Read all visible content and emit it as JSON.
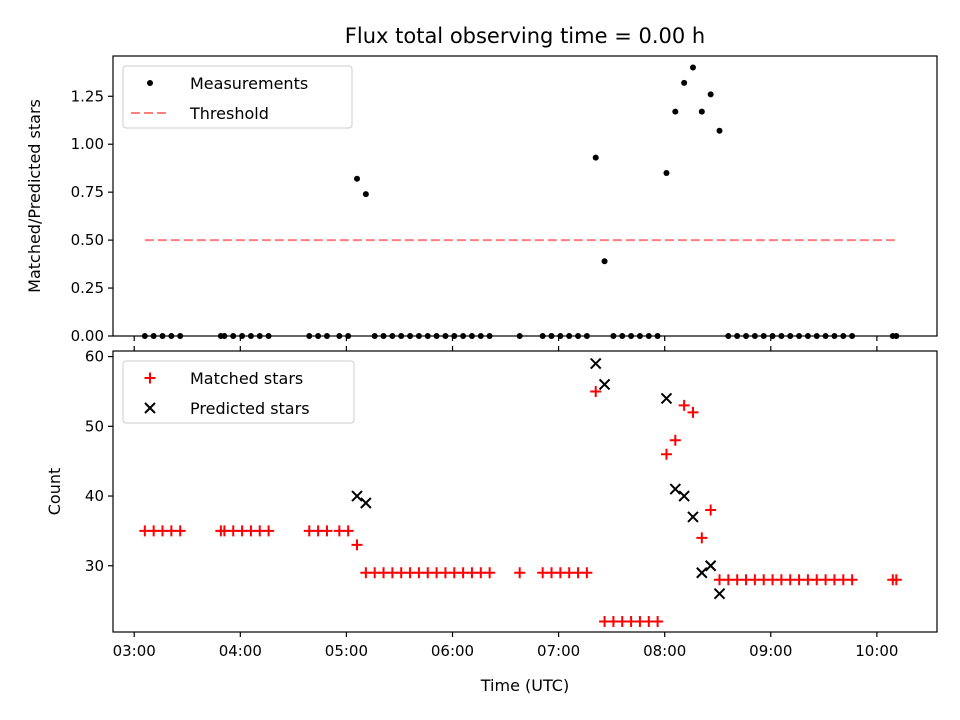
{
  "figure_title": "Flux total observing time = 0.00 h",
  "chart_data": [
    {
      "type": "scatter",
      "ylabel": "Matched/Predicted stars",
      "xlabel": "",
      "xlim": [
        "02:48",
        "10:34"
      ],
      "ylim": [
        0,
        1.46
      ],
      "yticks": [
        "0.00",
        "0.25",
        "0.50",
        "0.75",
        "1.00",
        "1.25"
      ],
      "grid": false,
      "legend_position": "top-left",
      "series": [
        {
          "name": "Measurements",
          "marker": "dot",
          "color": "#000000",
          "points": [
            [
              "03:06",
              0
            ],
            [
              "03:11",
              0
            ],
            [
              "03:16",
              0
            ],
            [
              "03:21",
              0
            ],
            [
              "03:26",
              0
            ],
            [
              "03:49",
              0
            ],
            [
              "03:51",
              0
            ],
            [
              "03:56",
              0
            ],
            [
              "04:01",
              0
            ],
            [
              "04:06",
              0
            ],
            [
              "04:11",
              0
            ],
            [
              "04:16",
              0
            ],
            [
              "04:39",
              0
            ],
            [
              "04:44",
              0
            ],
            [
              "04:49",
              0
            ],
            [
              "04:56",
              0
            ],
            [
              "05:01",
              0
            ],
            [
              "05:06",
              0.82
            ],
            [
              "05:11",
              0.74
            ],
            [
              "05:16",
              0
            ],
            [
              "05:21",
              0
            ],
            [
              "05:26",
              0
            ],
            [
              "05:31",
              0
            ],
            [
              "05:36",
              0
            ],
            [
              "05:41",
              0
            ],
            [
              "05:46",
              0
            ],
            [
              "05:51",
              0
            ],
            [
              "05:56",
              0
            ],
            [
              "06:01",
              0
            ],
            [
              "06:06",
              0
            ],
            [
              "06:11",
              0
            ],
            [
              "06:16",
              0
            ],
            [
              "06:21",
              0
            ],
            [
              "06:38",
              0
            ],
            [
              "06:51",
              0
            ],
            [
              "06:56",
              0
            ],
            [
              "07:01",
              0
            ],
            [
              "07:06",
              0
            ],
            [
              "07:11",
              0
            ],
            [
              "07:16",
              0
            ],
            [
              "07:21",
              0.93
            ],
            [
              "07:26",
              0.39
            ],
            [
              "07:31",
              0
            ],
            [
              "07:36",
              0
            ],
            [
              "07:41",
              0
            ],
            [
              "07:46",
              0
            ],
            [
              "07:51",
              0
            ],
            [
              "07:56",
              0
            ],
            [
              "08:01",
              0.85
            ],
            [
              "08:06",
              1.17
            ],
            [
              "08:11",
              1.32
            ],
            [
              "08:16",
              1.4
            ],
            [
              "08:21",
              1.17
            ],
            [
              "08:26",
              1.26
            ],
            [
              "08:31",
              1.07
            ],
            [
              "08:36",
              0
            ],
            [
              "08:41",
              0
            ],
            [
              "08:46",
              0
            ],
            [
              "08:51",
              0
            ],
            [
              "08:56",
              0
            ],
            [
              "09:01",
              0
            ],
            [
              "09:06",
              0
            ],
            [
              "09:11",
              0
            ],
            [
              "09:16",
              0
            ],
            [
              "09:21",
              0
            ],
            [
              "09:26",
              0
            ],
            [
              "09:31",
              0
            ],
            [
              "09:36",
              0
            ],
            [
              "09:41",
              0
            ],
            [
              "09:46",
              0
            ],
            [
              "10:09",
              0
            ],
            [
              "10:11",
              0
            ]
          ]
        },
        {
          "name": "Threshold",
          "marker": "dashed-line",
          "color": "#ff7f7f",
          "points": [
            [
              "03:06",
              0.5
            ],
            [
              "10:11",
              0.5
            ]
          ]
        }
      ]
    },
    {
      "type": "scatter",
      "ylabel": "Count",
      "xlabel": "Time (UTC)",
      "xlim": [
        "02:48",
        "10:34"
      ],
      "ylim": [
        20.5,
        60.8
      ],
      "yticks": [
        "30",
        "40",
        "50",
        "60"
      ],
      "xticks": [
        "03:00",
        "04:00",
        "05:00",
        "06:00",
        "07:00",
        "08:00",
        "09:00",
        "10:00"
      ],
      "grid": false,
      "legend_position": "top-left",
      "series": [
        {
          "name": "Matched stars",
          "marker": "plus",
          "color": "#ff0000",
          "points": [
            [
              "03:06",
              35
            ],
            [
              "03:11",
              35
            ],
            [
              "03:16",
              35
            ],
            [
              "03:21",
              35
            ],
            [
              "03:26",
              35
            ],
            [
              "03:49",
              35
            ],
            [
              "03:51",
              35
            ],
            [
              "03:56",
              35
            ],
            [
              "04:01",
              35
            ],
            [
              "04:06",
              35
            ],
            [
              "04:11",
              35
            ],
            [
              "04:16",
              35
            ],
            [
              "04:39",
              35
            ],
            [
              "04:44",
              35
            ],
            [
              "04:49",
              35
            ],
            [
              "04:56",
              35
            ],
            [
              "05:01",
              35
            ],
            [
              "05:06",
              33
            ],
            [
              "05:11",
              29
            ],
            [
              "05:16",
              29
            ],
            [
              "05:21",
              29
            ],
            [
              "05:26",
              29
            ],
            [
              "05:31",
              29
            ],
            [
              "05:36",
              29
            ],
            [
              "05:41",
              29
            ],
            [
              "05:46",
              29
            ],
            [
              "05:51",
              29
            ],
            [
              "05:56",
              29
            ],
            [
              "06:01",
              29
            ],
            [
              "06:06",
              29
            ],
            [
              "06:11",
              29
            ],
            [
              "06:16",
              29
            ],
            [
              "06:21",
              29
            ],
            [
              "06:38",
              29
            ],
            [
              "06:51",
              29
            ],
            [
              "06:56",
              29
            ],
            [
              "07:01",
              29
            ],
            [
              "07:06",
              29
            ],
            [
              "07:11",
              29
            ],
            [
              "07:16",
              29
            ],
            [
              "07:21",
              55
            ],
            [
              "07:26",
              22
            ],
            [
              "07:31",
              22
            ],
            [
              "07:36",
              22
            ],
            [
              "07:41",
              22
            ],
            [
              "07:46",
              22
            ],
            [
              "07:51",
              22
            ],
            [
              "07:56",
              22
            ],
            [
              "08:01",
              46
            ],
            [
              "08:06",
              48
            ],
            [
              "08:11",
              53
            ],
            [
              "08:16",
              52
            ],
            [
              "08:21",
              34
            ],
            [
              "08:26",
              38
            ],
            [
              "08:31",
              28
            ],
            [
              "08:36",
              28
            ],
            [
              "08:41",
              28
            ],
            [
              "08:46",
              28
            ],
            [
              "08:51",
              28
            ],
            [
              "08:56",
              28
            ],
            [
              "09:01",
              28
            ],
            [
              "09:06",
              28
            ],
            [
              "09:11",
              28
            ],
            [
              "09:16",
              28
            ],
            [
              "09:21",
              28
            ],
            [
              "09:26",
              28
            ],
            [
              "09:31",
              28
            ],
            [
              "09:36",
              28
            ],
            [
              "09:41",
              28
            ],
            [
              "09:46",
              28
            ],
            [
              "10:09",
              28
            ],
            [
              "10:11",
              28
            ]
          ]
        },
        {
          "name": "Predicted stars",
          "marker": "cross",
          "color": "#000000",
          "points": [
            [
              "05:06",
              40
            ],
            [
              "05:11",
              39
            ],
            [
              "07:21",
              59
            ],
            [
              "07:26",
              56
            ],
            [
              "08:01",
              54
            ],
            [
              "08:06",
              41
            ],
            [
              "08:11",
              40
            ],
            [
              "08:16",
              37
            ],
            [
              "08:21",
              29
            ],
            [
              "08:26",
              30
            ],
            [
              "08:31",
              26
            ]
          ]
        }
      ]
    }
  ]
}
